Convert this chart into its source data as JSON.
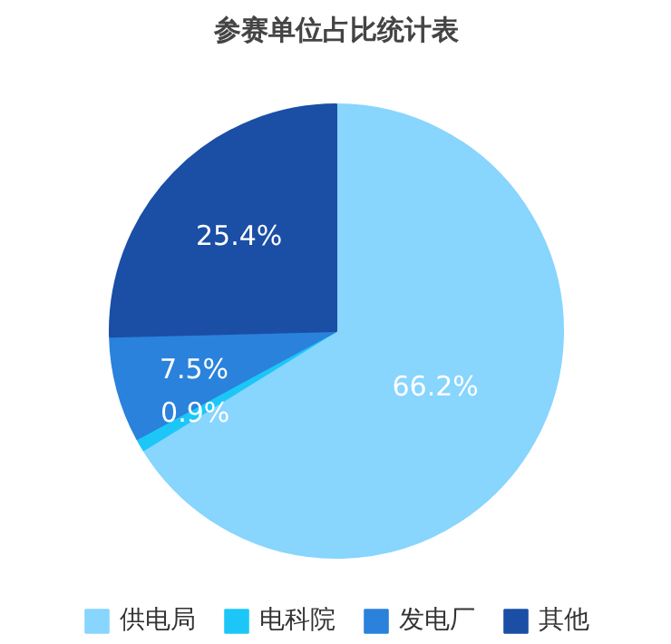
{
  "chart_data": {
    "type": "pie",
    "title": "参赛单位占比统计表",
    "categories": [
      "供电局",
      "电科院",
      "发电厂",
      "其他"
    ],
    "values": [
      66.2,
      0.9,
      7.5,
      25.4
    ],
    "value_labels": [
      "66.2%",
      "0.9%",
      "7.5%",
      "25.4%"
    ],
    "colors": [
      "#88d5fe",
      "#1cc7f7",
      "#2a82dc",
      "#1b4fa6"
    ],
    "legend": "bottom"
  }
}
